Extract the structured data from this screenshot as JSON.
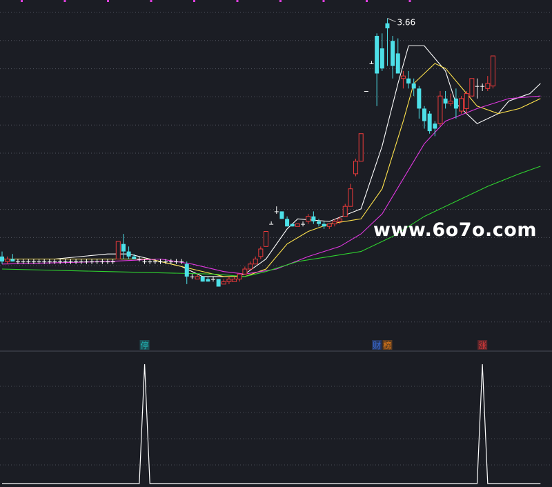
{
  "watermark": "www.6o7o.com",
  "chart_data": [
    {
      "type": "candlestick",
      "panel": "main",
      "title": "",
      "max_label": "3.66",
      "ylim": [
        2.44,
        3.7
      ],
      "grid": true,
      "colors": {
        "up": "#ef3b3b",
        "down": "#4de0e8",
        "flat": "#ffffff",
        "ma5": "#ffffff",
        "ma10": "#ffe34d",
        "ma20": "#e238e2",
        "ma60": "#2fd32f",
        "grid": "#6a6d78",
        "marker": "#e040e0"
      },
      "candles": [
        {
          "o": 2.71,
          "h": 2.73,
          "l": 2.68,
          "c": 2.69
        },
        {
          "o": 2.69,
          "h": 2.71,
          "l": 2.68,
          "c": 2.7
        },
        {
          "o": 2.7,
          "h": 2.72,
          "l": 2.69,
          "c": 2.69
        },
        {
          "o": 2.69,
          "h": 2.7,
          "l": 2.68,
          "c": 2.69
        },
        {
          "o": 2.69,
          "h": 2.7,
          "l": 2.68,
          "c": 2.69
        },
        {
          "o": 2.69,
          "h": 2.7,
          "l": 2.68,
          "c": 2.69
        },
        {
          "o": 2.69,
          "h": 2.7,
          "l": 2.68,
          "c": 2.69
        },
        {
          "o": 2.69,
          "h": 2.7,
          "l": 2.68,
          "c": 2.69
        },
        {
          "o": 2.69,
          "h": 2.7,
          "l": 2.68,
          "c": 2.69
        },
        {
          "o": 2.69,
          "h": 2.7,
          "l": 2.68,
          "c": 2.69
        },
        {
          "o": 2.69,
          "h": 2.7,
          "l": 2.68,
          "c": 2.69
        },
        {
          "o": 2.69,
          "h": 2.7,
          "l": 2.68,
          "c": 2.69
        },
        {
          "o": 2.69,
          "h": 2.7,
          "l": 2.68,
          "c": 2.69
        },
        {
          "o": 2.69,
          "h": 2.7,
          "l": 2.68,
          "c": 2.69
        },
        {
          "o": 2.69,
          "h": 2.7,
          "l": 2.68,
          "c": 2.69
        },
        {
          "o": 2.69,
          "h": 2.7,
          "l": 2.68,
          "c": 2.69
        },
        {
          "o": 2.69,
          "h": 2.7,
          "l": 2.68,
          "c": 2.69
        },
        {
          "o": 2.69,
          "h": 2.7,
          "l": 2.68,
          "c": 2.69
        },
        {
          "o": 2.69,
          "h": 2.7,
          "l": 2.68,
          "c": 2.69
        },
        {
          "o": 2.69,
          "h": 2.7,
          "l": 2.68,
          "c": 2.69
        },
        {
          "o": 2.69,
          "h": 2.7,
          "l": 2.68,
          "c": 2.69
        },
        {
          "o": 2.69,
          "h": 2.7,
          "l": 2.68,
          "c": 2.69
        },
        {
          "o": 2.7,
          "h": 2.77,
          "l": 2.7,
          "c": 2.77
        },
        {
          "o": 2.76,
          "h": 2.8,
          "l": 2.7,
          "c": 2.73
        },
        {
          "o": 2.73,
          "h": 2.75,
          "l": 2.7,
          "c": 2.71
        },
        {
          "o": 2.71,
          "h": 2.72,
          "l": 2.7,
          "c": 2.7
        },
        {
          "o": 2.7,
          "h": 2.71,
          "l": 2.69,
          "c": 2.7
        },
        {
          "o": 2.69,
          "h": 2.7,
          "l": 2.68,
          "c": 2.69
        },
        {
          "o": 2.69,
          "h": 2.7,
          "l": 2.68,
          "c": 2.69
        },
        {
          "o": 2.69,
          "h": 2.7,
          "l": 2.68,
          "c": 2.69
        },
        {
          "o": 2.69,
          "h": 2.7,
          "l": 2.68,
          "c": 2.69
        },
        {
          "o": 2.69,
          "h": 2.7,
          "l": 2.68,
          "c": 2.69
        },
        {
          "o": 2.69,
          "h": 2.7,
          "l": 2.68,
          "c": 2.69
        },
        {
          "o": 2.69,
          "h": 2.7,
          "l": 2.68,
          "c": 2.69
        },
        {
          "o": 2.69,
          "h": 2.7,
          "l": 2.68,
          "c": 2.69
        },
        {
          "o": 2.68,
          "h": 2.69,
          "l": 2.6,
          "c": 2.63
        },
        {
          "o": 2.63,
          "h": 2.64,
          "l": 2.62,
          "c": 2.63
        },
        {
          "o": 2.62,
          "h": 2.64,
          "l": 2.62,
          "c": 2.63
        },
        {
          "o": 2.63,
          "h": 2.63,
          "l": 2.61,
          "c": 2.61
        },
        {
          "o": 2.62,
          "h": 2.63,
          "l": 2.61,
          "c": 2.61
        },
        {
          "o": 2.62,
          "h": 2.63,
          "l": 2.61,
          "c": 2.62
        },
        {
          "o": 2.62,
          "h": 2.62,
          "l": 2.59,
          "c": 2.59
        },
        {
          "o": 2.6,
          "h": 2.62,
          "l": 2.6,
          "c": 2.61
        },
        {
          "o": 2.61,
          "h": 2.63,
          "l": 2.6,
          "c": 2.62
        },
        {
          "o": 2.61,
          "h": 2.63,
          "l": 2.61,
          "c": 2.62
        },
        {
          "o": 2.62,
          "h": 2.64,
          "l": 2.61,
          "c": 2.64
        },
        {
          "o": 2.64,
          "h": 2.67,
          "l": 2.64,
          "c": 2.66
        },
        {
          "o": 2.66,
          "h": 2.69,
          "l": 2.66,
          "c": 2.68
        },
        {
          "o": 2.68,
          "h": 2.71,
          "l": 2.68,
          "c": 2.7
        },
        {
          "o": 2.71,
          "h": 2.75,
          "l": 2.7,
          "c": 2.74
        },
        {
          "o": 2.75,
          "h": 2.81,
          "l": 2.75,
          "c": 2.81
        },
        {
          "o": 2.84,
          "h": 2.85,
          "l": 2.84,
          "c": 2.84
        },
        {
          "o": 2.89,
          "h": 2.91,
          "l": 2.88,
          "c": 2.89
        },
        {
          "o": 2.89,
          "h": 2.89,
          "l": 2.86,
          "c": 2.86
        },
        {
          "o": 2.86,
          "h": 2.87,
          "l": 2.83,
          "c": 2.83
        },
        {
          "o": 2.84,
          "h": 2.84,
          "l": 2.83,
          "c": 2.83
        },
        {
          "o": 2.83,
          "h": 2.84,
          "l": 2.83,
          "c": 2.84
        },
        {
          "o": 2.84,
          "h": 2.85,
          "l": 2.83,
          "c": 2.84
        },
        {
          "o": 2.85,
          "h": 2.88,
          "l": 2.84,
          "c": 2.87
        },
        {
          "o": 2.87,
          "h": 2.89,
          "l": 2.84,
          "c": 2.85
        },
        {
          "o": 2.85,
          "h": 2.86,
          "l": 2.83,
          "c": 2.84
        },
        {
          "o": 2.84,
          "h": 2.85,
          "l": 2.82,
          "c": 2.83
        },
        {
          "o": 2.83,
          "h": 2.84,
          "l": 2.82,
          "c": 2.84
        },
        {
          "o": 2.84,
          "h": 2.86,
          "l": 2.83,
          "c": 2.85
        },
        {
          "o": 2.85,
          "h": 2.87,
          "l": 2.84,
          "c": 2.86
        },
        {
          "o": 2.87,
          "h": 2.92,
          "l": 2.87,
          "c": 2.91
        },
        {
          "o": 2.91,
          "h": 3.0,
          "l": 2.91,
          "c": 2.98
        },
        {
          "o": 3.04,
          "h": 3.1,
          "l": 3.03,
          "c": 3.09
        },
        {
          "o": 3.09,
          "h": 3.2,
          "l": 3.09,
          "c": 3.2
        },
        {
          "o": 3.37,
          "h": 3.37,
          "l": 3.37,
          "c": 3.37
        },
        {
          "o": 3.48,
          "h": 3.49,
          "l": 3.48,
          "c": 3.48
        },
        {
          "o": 3.59,
          "h": 3.6,
          "l": 3.31,
          "c": 3.44
        },
        {
          "o": 3.54,
          "h": 3.6,
          "l": 3.45,
          "c": 3.46
        },
        {
          "o": 3.64,
          "h": 3.66,
          "l": 3.47,
          "c": 3.62
        },
        {
          "o": 3.57,
          "h": 3.59,
          "l": 3.42,
          "c": 3.47
        },
        {
          "o": 3.52,
          "h": 3.58,
          "l": 3.44,
          "c": 3.44
        },
        {
          "o": 3.42,
          "h": 3.45,
          "l": 3.38,
          "c": 3.43
        },
        {
          "o": 3.42,
          "h": 3.45,
          "l": 3.38,
          "c": 3.4
        },
        {
          "o": 3.4,
          "h": 3.42,
          "l": 3.35,
          "c": 3.38
        },
        {
          "o": 3.38,
          "h": 3.39,
          "l": 3.26,
          "c": 3.3
        },
        {
          "o": 3.3,
          "h": 3.31,
          "l": 3.22,
          "c": 3.25
        },
        {
          "o": 3.28,
          "h": 3.29,
          "l": 3.2,
          "c": 3.21
        },
        {
          "o": 3.24,
          "h": 3.25,
          "l": 3.19,
          "c": 3.22
        },
        {
          "o": 3.24,
          "h": 3.37,
          "l": 3.23,
          "c": 3.35
        },
        {
          "o": 3.34,
          "h": 3.37,
          "l": 3.3,
          "c": 3.32
        },
        {
          "o": 3.32,
          "h": 3.36,
          "l": 3.31,
          "c": 3.33
        },
        {
          "o": 3.34,
          "h": 3.38,
          "l": 3.26,
          "c": 3.3
        },
        {
          "o": 3.29,
          "h": 3.35,
          "l": 3.28,
          "c": 3.34
        },
        {
          "o": 3.3,
          "h": 3.37,
          "l": 3.28,
          "c": 3.36
        },
        {
          "o": 3.35,
          "h": 3.42,
          "l": 3.35,
          "c": 3.42
        },
        {
          "o": 3.39,
          "h": 3.42,
          "l": 3.34,
          "c": 3.39
        },
        {
          "o": 3.39,
          "h": 3.4,
          "l": 3.37,
          "c": 3.39
        },
        {
          "o": 3.38,
          "h": 3.43,
          "l": 3.37,
          "c": 3.4
        },
        {
          "o": 3.39,
          "h": 3.51,
          "l": 3.38,
          "c": 3.51
        }
      ],
      "ma_lines": [
        {
          "key": "ma5",
          "points": [
            [
              0,
              2.7
            ],
            [
              10,
              2.7
            ],
            [
              20,
              2.72
            ],
            [
              24,
              2.72
            ],
            [
              30,
              2.69
            ],
            [
              34,
              2.67
            ],
            [
              38,
              2.63
            ],
            [
              44,
              2.63
            ],
            [
              46,
              2.64
            ],
            [
              50,
              2.7
            ],
            [
              54,
              2.82
            ],
            [
              56,
              2.86
            ],
            [
              62,
              2.85
            ],
            [
              68,
              2.9
            ],
            [
              72,
              3.15
            ],
            [
              75,
              3.4
            ],
            [
              77,
              3.55
            ],
            [
              80,
              3.55
            ],
            [
              84,
              3.45
            ],
            [
              86,
              3.32
            ],
            [
              90,
              3.24
            ],
            [
              94,
              3.28
            ],
            [
              96,
              3.33
            ],
            [
              100,
              3.36
            ],
            [
              102,
              3.4
            ]
          ]
        },
        {
          "key": "ma10",
          "points": [
            [
              0,
              2.7
            ],
            [
              20,
              2.7
            ],
            [
              28,
              2.7
            ],
            [
              36,
              2.66
            ],
            [
              42,
              2.63
            ],
            [
              46,
              2.63
            ],
            [
              50,
              2.66
            ],
            [
              54,
              2.76
            ],
            [
              58,
              2.81
            ],
            [
              62,
              2.84
            ],
            [
              68,
              2.86
            ],
            [
              72,
              2.98
            ],
            [
              76,
              3.25
            ],
            [
              78,
              3.4
            ],
            [
              82,
              3.48
            ],
            [
              84,
              3.46
            ],
            [
              88,
              3.36
            ],
            [
              90,
              3.31
            ],
            [
              94,
              3.28
            ],
            [
              98,
              3.3
            ],
            [
              102,
              3.34
            ]
          ]
        },
        {
          "key": "ma20",
          "points": [
            [
              0,
              2.68
            ],
            [
              20,
              2.69
            ],
            [
              30,
              2.7
            ],
            [
              36,
              2.68
            ],
            [
              42,
              2.65
            ],
            [
              46,
              2.64
            ],
            [
              52,
              2.66
            ],
            [
              58,
              2.71
            ],
            [
              64,
              2.75
            ],
            [
              68,
              2.8
            ],
            [
              72,
              2.88
            ],
            [
              76,
              3.02
            ],
            [
              80,
              3.16
            ],
            [
              84,
              3.25
            ],
            [
              90,
              3.3
            ],
            [
              96,
              3.34
            ],
            [
              102,
              3.35
            ]
          ]
        },
        {
          "key": "ma60",
          "points": [
            [
              0,
              2.66
            ],
            [
              20,
              2.65
            ],
            [
              40,
              2.64
            ],
            [
              46,
              2.63
            ],
            [
              50,
              2.65
            ],
            [
              56,
              2.69
            ],
            [
              62,
              2.71
            ],
            [
              68,
              2.73
            ],
            [
              74,
              2.79
            ],
            [
              80,
              2.87
            ],
            [
              86,
              2.93
            ],
            [
              92,
              2.99
            ],
            [
              98,
              3.04
            ],
            [
              102,
              3.07
            ]
          ]
        }
      ],
      "event_labels": [
        {
          "text": "停",
          "index": 27,
          "color": "#21b3b3"
        },
        {
          "text": "财",
          "index": 71,
          "color": "#3b6cd8"
        },
        {
          "text": "榜",
          "index": 73,
          "color": "#e07a1a"
        },
        {
          "text": "涨",
          "index": 91,
          "color": "#d93a3a"
        }
      ],
      "top_markers": 10
    },
    {
      "type": "line",
      "panel": "indicator",
      "title": "",
      "ylim": [
        0,
        1
      ],
      "grid": true,
      "values": [
        0,
        0,
        0,
        0,
        0,
        0,
        0,
        0,
        0,
        0,
        0,
        0,
        0,
        0,
        0,
        0,
        0,
        0,
        0,
        0,
        0,
        0,
        0,
        0,
        0,
        0,
        0,
        1,
        0,
        0,
        0,
        0,
        0,
        0,
        0,
        0,
        0,
        0,
        0,
        0,
        0,
        0,
        0,
        0,
        0,
        0,
        0,
        0,
        0,
        0,
        0,
        0,
        0,
        0,
        0,
        0,
        0,
        0,
        0,
        0,
        0,
        0,
        0,
        0,
        0,
        0,
        0,
        0,
        0,
        0,
        0,
        0,
        0,
        0,
        0,
        0,
        0,
        0,
        0,
        0,
        0,
        0,
        0,
        0,
        0,
        0,
        0,
        0,
        0,
        0,
        0,
        1,
        0,
        0,
        0,
        0,
        0,
        0,
        0,
        0,
        0,
        0,
        0
      ]
    }
  ]
}
